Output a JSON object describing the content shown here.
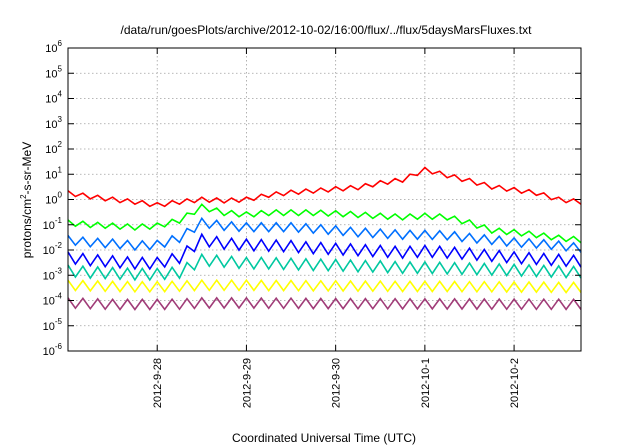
{
  "chart_data": {
    "type": "line",
    "title": "/data/run/goesPlots/archive/2012-10-02/16:00/flux/../flux/5daysMarsFluxes.txt",
    "xlabel": "Coordinated Universal Time (UTC)",
    "ylabel": {
      "base": "protons/cm",
      "sup": "2",
      "rest": "-s-sr-MeV"
    },
    "x_scale": "time",
    "y_scale": "log",
    "grid": true,
    "xlim": [
      "2012-09-27T00:00",
      "2012-10-02T18:00"
    ],
    "ylim": [
      1e-06,
      1000000.0
    ],
    "x_ticks": [
      "2012-9-28",
      "2012-9-29",
      "2012-9-30",
      "2012-10-1",
      "2012-10-2"
    ],
    "x_tick_dates": [
      "2012-09-28T00:00",
      "2012-09-29T00:00",
      "2012-09-30T00:00",
      "2012-10-01T00:00",
      "2012-10-02T00:00"
    ],
    "y_ticks": [
      {
        "base": "10",
        "exp": "-6",
        "value": 1e-06
      },
      {
        "base": "10",
        "exp": "-5",
        "value": 1e-05
      },
      {
        "base": "10",
        "exp": "-4",
        "value": 0.0001
      },
      {
        "base": "10",
        "exp": "-3",
        "value": 0.001
      },
      {
        "base": "10",
        "exp": "-2",
        "value": 0.01
      },
      {
        "base": "10",
        "exp": "-1",
        "value": 0.1
      },
      {
        "base": "10",
        "exp": "0",
        "value": 1
      },
      {
        "base": "10",
        "exp": "1",
        "value": 10
      },
      {
        "base": "10",
        "exp": "2",
        "value": 100
      },
      {
        "base": "10",
        "exp": "3",
        "value": 1000
      },
      {
        "base": "10",
        "exp": "4",
        "value": 10000
      },
      {
        "base": "10",
        "exp": "5",
        "value": 100000
      },
      {
        "base": "10",
        "exp": "6",
        "value": 1000000
      }
    ],
    "series": [
      {
        "color": "#ff0000",
        "x": [
          "2012-09-27T00:00",
          "2012-09-27T06:00",
          "2012-09-27T12:00",
          "2012-09-27T18:00",
          "2012-09-28T00:00",
          "2012-09-28T06:00",
          "2012-09-28T12:00",
          "2012-09-28T18:00",
          "2012-09-29T00:00",
          "2012-09-29T06:00",
          "2012-09-29T12:00",
          "2012-09-29T18:00",
          "2012-09-30T00:00",
          "2012-09-30T06:00",
          "2012-09-30T12:00",
          "2012-09-30T18:00",
          "2012-10-01T00:00",
          "2012-10-01T06:00",
          "2012-10-01T12:00",
          "2012-10-01T18:00",
          "2012-10-02T00:00",
          "2012-10-02T06:00",
          "2012-10-02T12:00",
          "2012-10-02T18:00"
        ],
        "y": [
          1.8,
          1.3,
          1.0,
          0.8,
          0.6,
          0.8,
          1.0,
          0.9,
          1.0,
          1.5,
          1.9,
          2.2,
          2.6,
          3.0,
          4.5,
          6.0,
          15,
          9,
          5.5,
          3.2,
          2.4,
          1.8,
          1.0,
          0.8
        ]
      },
      {
        "color": "#00ff00",
        "x": [
          "2012-09-27T00:00",
          "2012-09-27T06:00",
          "2012-09-27T12:00",
          "2012-09-27T18:00",
          "2012-09-28T00:00",
          "2012-09-28T06:00",
          "2012-09-28T12:00",
          "2012-09-28T18:00",
          "2012-09-29T00:00",
          "2012-09-29T06:00",
          "2012-09-29T12:00",
          "2012-09-29T18:00",
          "2012-09-30T00:00",
          "2012-09-30T06:00",
          "2012-09-30T12:00",
          "2012-09-30T18:00",
          "2012-10-01T00:00",
          "2012-10-01T06:00",
          "2012-10-01T12:00",
          "2012-10-01T18:00",
          "2012-10-02T00:00",
          "2012-10-02T06:00",
          "2012-10-02T12:00",
          "2012-10-02T18:00"
        ],
        "y": [
          0.12,
          0.1,
          0.09,
          0.08,
          0.09,
          0.15,
          0.5,
          0.3,
          0.25,
          0.3,
          0.3,
          0.3,
          0.28,
          0.25,
          0.22,
          0.2,
          0.22,
          0.2,
          0.12,
          0.06,
          0.05,
          0.04,
          0.03,
          0.025
        ]
      },
      {
        "color": "#0070ff",
        "x": [
          "2012-09-27T00:00",
          "2012-09-27T06:00",
          "2012-09-27T12:00",
          "2012-09-27T18:00",
          "2012-09-28T00:00",
          "2012-09-28T06:00",
          "2012-09-28T12:00",
          "2012-09-28T18:00",
          "2012-09-29T00:00",
          "2012-09-29T06:00",
          "2012-09-29T12:00",
          "2012-09-29T18:00",
          "2012-09-30T00:00",
          "2012-09-30T06:00",
          "2012-09-30T12:00",
          "2012-09-30T18:00",
          "2012-10-01T00:00",
          "2012-10-01T06:00",
          "2012-10-01T12:00",
          "2012-10-01T18:00",
          "2012-10-02T00:00",
          "2012-10-02T06:00",
          "2012-10-02T12:00",
          "2012-10-02T18:00"
        ],
        "y": [
          0.025,
          0.02,
          0.018,
          0.015,
          0.016,
          0.03,
          0.12,
          0.09,
          0.08,
          0.08,
          0.08,
          0.07,
          0.06,
          0.05,
          0.045,
          0.04,
          0.04,
          0.038,
          0.03,
          0.025,
          0.02,
          0.018,
          0.015,
          0.012
        ]
      },
      {
        "color": "#0000ff",
        "x": [
          "2012-09-27T00:00",
          "2012-09-27T06:00",
          "2012-09-27T12:00",
          "2012-09-27T18:00",
          "2012-09-28T00:00",
          "2012-09-28T06:00",
          "2012-09-28T12:00",
          "2012-09-28T18:00",
          "2012-09-29T00:00",
          "2012-09-29T06:00",
          "2012-09-29T12:00",
          "2012-09-29T18:00",
          "2012-09-30T00:00",
          "2012-09-30T06:00",
          "2012-09-30T12:00",
          "2012-09-30T18:00",
          "2012-10-01T00:00",
          "2012-10-01T06:00",
          "2012-10-01T12:00",
          "2012-10-01T18:00",
          "2012-10-02T00:00",
          "2012-10-02T06:00",
          "2012-10-02T12:00",
          "2012-10-02T18:00"
        ],
        "y": [
          0.005,
          0.004,
          0.0035,
          0.003,
          0.003,
          0.005,
          0.025,
          0.018,
          0.016,
          0.015,
          0.014,
          0.012,
          0.011,
          0.01,
          0.009,
          0.008,
          0.009,
          0.008,
          0.007,
          0.006,
          0.005,
          0.0045,
          0.004,
          0.0035
        ]
      },
      {
        "color": "#00c8a0",
        "x": [
          "2012-09-27T00:00",
          "2012-09-27T06:00",
          "2012-09-27T12:00",
          "2012-09-27T18:00",
          "2012-09-28T00:00",
          "2012-09-28T06:00",
          "2012-09-28T12:00",
          "2012-09-28T18:00",
          "2012-09-29T00:00",
          "2012-09-29T06:00",
          "2012-09-29T12:00",
          "2012-09-29T18:00",
          "2012-09-30T00:00",
          "2012-09-30T06:00",
          "2012-09-30T12:00",
          "2012-09-30T18:00",
          "2012-10-01T00:00",
          "2012-10-01T06:00",
          "2012-10-01T12:00",
          "2012-10-01T18:00",
          "2012-10-02T00:00",
          "2012-10-02T06:00",
          "2012-10-02T12:00",
          "2012-10-02T18:00"
        ],
        "y": [
          0.0015,
          0.0013,
          0.0012,
          0.0011,
          0.0011,
          0.0013,
          0.004,
          0.0035,
          0.003,
          0.003,
          0.0028,
          0.0026,
          0.0025,
          0.0023,
          0.0022,
          0.002,
          0.002,
          0.0019,
          0.0018,
          0.0017,
          0.0016,
          0.0015,
          0.0014,
          0.0013
        ]
      },
      {
        "color": "#ffff00",
        "x": [
          "2012-09-27T00:00",
          "2012-09-27T06:00",
          "2012-09-27T12:00",
          "2012-09-27T18:00",
          "2012-09-28T00:00",
          "2012-09-28T06:00",
          "2012-09-28T12:00",
          "2012-09-28T18:00",
          "2012-09-29T00:00",
          "2012-09-29T06:00",
          "2012-09-29T12:00",
          "2012-09-29T18:00",
          "2012-09-30T00:00",
          "2012-09-30T06:00",
          "2012-09-30T12:00",
          "2012-09-30T18:00",
          "2012-10-01T00:00",
          "2012-10-01T06:00",
          "2012-10-01T12:00",
          "2012-10-01T18:00",
          "2012-10-02T00:00",
          "2012-10-02T06:00",
          "2012-10-02T12:00",
          "2012-10-02T18:00"
        ],
        "y": [
          0.0004,
          0.00038,
          0.00036,
          0.00035,
          0.00035,
          0.00037,
          0.0004,
          0.0004,
          0.0004,
          0.00039,
          0.00039,
          0.00038,
          0.00038,
          0.00037,
          0.00037,
          0.00036,
          0.00036,
          0.00036,
          0.00035,
          0.00035,
          0.00034,
          0.00034,
          0.00033,
          0.00033
        ]
      },
      {
        "color": "#a03c78",
        "x": [
          "2012-09-27T00:00",
          "2012-09-27T06:00",
          "2012-09-27T12:00",
          "2012-09-27T18:00",
          "2012-09-28T00:00",
          "2012-09-28T06:00",
          "2012-09-28T12:00",
          "2012-09-28T18:00",
          "2012-09-29T00:00",
          "2012-09-29T06:00",
          "2012-09-29T12:00",
          "2012-09-29T18:00",
          "2012-09-30T00:00",
          "2012-09-30T06:00",
          "2012-09-30T12:00",
          "2012-09-30T18:00",
          "2012-10-01T00:00",
          "2012-10-01T06:00",
          "2012-10-01T12:00",
          "2012-10-01T18:00",
          "2012-10-02T00:00",
          "2012-10-02T06:00",
          "2012-10-02T12:00",
          "2012-10-02T18:00"
        ],
        "y": [
          8e-05,
          7.5e-05,
          7e-05,
          7e-05,
          7e-05,
          7.2e-05,
          8e-05,
          8e-05,
          8e-05,
          7.8e-05,
          7.8e-05,
          7.6e-05,
          7.6e-05,
          7.5e-05,
          7.5e-05,
          7.4e-05,
          7.4e-05,
          7.3e-05,
          7.3e-05,
          7.2e-05,
          7.2e-05,
          7.1e-05,
          7.1e-05,
          7e-05
        ]
      }
    ]
  }
}
